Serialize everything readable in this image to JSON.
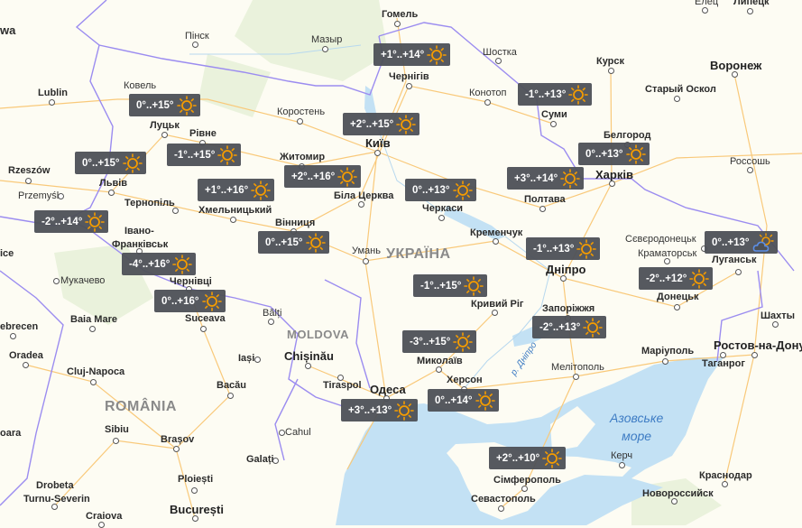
{
  "colors": {
    "land": "#fdfcf3",
    "water": "#c3e1f4",
    "road": "#f9c97a",
    "border": "#9b8cf0",
    "badge": "#4d5056",
    "sun": "#f59c00",
    "cloud": "#5b8ee6"
  },
  "countries": {
    "ukraine": "УКРАЇНА",
    "moldova": "MOLDOVA",
    "romania": "ROMÂNIA"
  },
  "seas": {
    "azov_1": "Азовське",
    "azov_2": "море",
    "river": "р. Дніпро"
  },
  "cities": [
    "wa",
    "Пінск",
    "Гомель",
    "Мазыр",
    "Шостка",
    "Курск",
    "Елец",
    "Липецк",
    "Воронеж",
    "Lublin",
    "Ковель",
    "Чернігів",
    "Конотоп",
    "Старый Оскол",
    "Коростень",
    "Луцьк",
    "Рівне",
    "Суми",
    "Київ",
    "Белгород",
    "Житомир",
    "Rzeszów",
    "Львів",
    "Przemyśl",
    "Біла Церква",
    "Россошь",
    "Харків",
    "Полтава",
    "Черкаси",
    "Тернопіль",
    "Хмельницький",
    "Вінниця",
    "Івано-",
    "Франківськ",
    "Кременчук",
    "Сєвєродонецьк",
    "Умань",
    "Краматорськ",
    "Луганськ",
    "Дніпро",
    "Мукачево",
    "Чернівці",
    "Кривий Ріг",
    "Донецьк",
    "Запоріжжя",
    "Шахты",
    "Baia Mare",
    "Suceava",
    "Bălți",
    "ebrecen",
    "Маріуполь",
    "Ростов-на-Дону",
    "Таганрог",
    "Oradea",
    "Iași",
    "Chișinău",
    "Миколаїв",
    "Мелітополь",
    "Cluj-Napoca",
    "Tiraspol",
    "Херсон",
    "Bacău",
    "Одеса",
    "Sibiu",
    "Cahul",
    "Brașov",
    "Керч",
    "Galați",
    "Сімферополь",
    "Краснодар",
    "Drobeta",
    "Turnu-Severin",
    "Ploiești",
    "Севастополь",
    "Новороссийск",
    "București",
    "Craiova",
    "ice",
    "oara"
  ],
  "forecasts": [
    {
      "temp": "+1°..+14°",
      "icon": "sun-icon"
    },
    {
      "temp": "0°..+15°",
      "icon": "sun-icon"
    },
    {
      "temp": "-1°..+13°",
      "icon": "sun-icon"
    },
    {
      "temp": "+2°..+15°",
      "icon": "sun-icon"
    },
    {
      "temp": "0°..+15°",
      "icon": "sun-icon"
    },
    {
      "temp": "-1°..+15°",
      "icon": "sun-icon"
    },
    {
      "temp": "0°..+13°",
      "icon": "sun-icon"
    },
    {
      "temp": "+2°..+16°",
      "icon": "sun-icon"
    },
    {
      "temp": "+3°..+14°",
      "icon": "sun-icon"
    },
    {
      "temp": "+1°..+16°",
      "icon": "sun-icon"
    },
    {
      "temp": "0°..+13°",
      "icon": "sun-icon"
    },
    {
      "temp": "-2°..+14°",
      "icon": "sun-icon"
    },
    {
      "temp": "0°..+15°",
      "icon": "sun-icon"
    },
    {
      "temp": "-1°..+13°",
      "icon": "sun-icon"
    },
    {
      "temp": "0°..+13°",
      "icon": "partly-cloudy-icon"
    },
    {
      "temp": "-4°..+16°",
      "icon": "sun-icon"
    },
    {
      "temp": "-1°..+15°",
      "icon": "sun-icon"
    },
    {
      "temp": "-2°..+12°",
      "icon": "sun-icon"
    },
    {
      "temp": "0°..+16°",
      "icon": "sun-icon"
    },
    {
      "temp": "-2°..+13°",
      "icon": "sun-icon"
    },
    {
      "temp": "-3°..+15°",
      "icon": "sun-icon"
    },
    {
      "temp": "+3°..+13°",
      "icon": "sun-icon"
    },
    {
      "temp": "0°..+14°",
      "icon": "sun-icon"
    },
    {
      "temp": "+2°..+10°",
      "icon": "sun-icon"
    }
  ]
}
